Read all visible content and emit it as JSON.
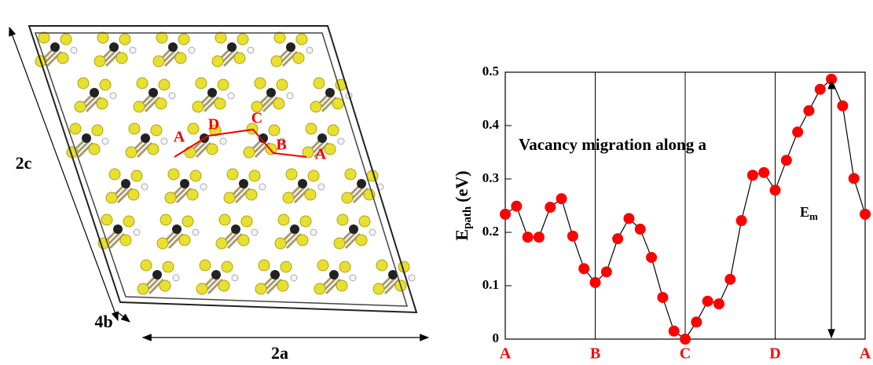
{
  "chart_data": {
    "type": "line",
    "title": "Vacancy migration along a",
    "y_label": {
      "main": "E",
      "sub": "path",
      "unit": "(eV)"
    },
    "x": [
      0,
      1,
      2,
      3,
      4,
      5,
      6,
      7,
      8,
      9,
      10,
      11,
      12,
      13,
      14,
      15,
      16,
      17,
      18,
      19,
      20,
      21,
      22,
      23,
      24,
      25,
      26,
      27,
      28,
      29,
      30,
      31,
      32
    ],
    "values": [
      0.234,
      0.249,
      0.191,
      0.191,
      0.247,
      0.263,
      0.193,
      0.132,
      0.106,
      0.126,
      0.188,
      0.226,
      0.206,
      0.153,
      0.078,
      0.015,
      0.0,
      0.032,
      0.071,
      0.066,
      0.112,
      0.222,
      0.307,
      0.312,
      0.279,
      0.335,
      0.388,
      0.428,
      0.468,
      0.487,
      0.437,
      0.301,
      0.234
    ],
    "color": "#ff0000",
    "line_color": "#000000",
    "tick_label_color": "#ff0000",
    "xlim": [
      0,
      32
    ],
    "xticks": [
      {
        "value": 0,
        "label": "A"
      },
      {
        "value": 8,
        "label": "B"
      },
      {
        "value": 16,
        "label": "C"
      },
      {
        "value": 24,
        "label": "D"
      },
      {
        "value": 32,
        "label": "A"
      }
    ],
    "ylim": [
      0,
      0.5
    ],
    "yticks": [
      0,
      0.1,
      0.2,
      0.3,
      0.4,
      0.5
    ],
    "grid": true,
    "annotation": {
      "main": "E",
      "sub": "m",
      "at_index": 29
    }
  },
  "structure": {
    "axis_labels": [
      "2c",
      "4b",
      "2a"
    ],
    "path_labels": [
      "A",
      "D",
      "C",
      "B",
      "A"
    ]
  }
}
